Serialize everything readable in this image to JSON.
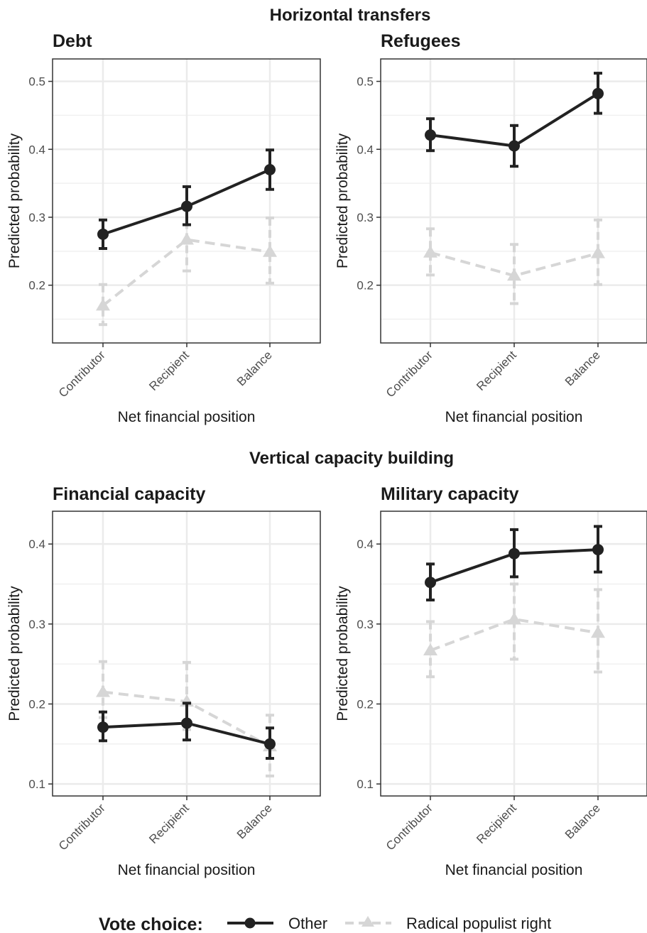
{
  "section_titles": {
    "top": "Horizontal transfers",
    "bottom": "Vertical capacity building"
  },
  "legend": {
    "title": "Vote choice:",
    "items": [
      {
        "label": "Other",
        "color": "#222222",
        "style": "solid",
        "marker": "circle"
      },
      {
        "label": "Radical populist right",
        "color": "#d6d6d6",
        "style": "dashed",
        "marker": "triangle"
      }
    ]
  },
  "chart_data": [
    {
      "type": "line",
      "title": "Debt",
      "xlabel": "Net financial position",
      "ylabel": "Predicted probability",
      "categories": [
        "Contributor",
        "Recipient",
        "Balance"
      ],
      "ylim": [
        0.115,
        0.533
      ],
      "yticks": [
        0.2,
        0.3,
        0.4,
        0.5
      ],
      "ytick_labels": [
        "0.2",
        "0.3",
        "0.4",
        "0.5"
      ],
      "grid": true,
      "series": [
        {
          "name": "Other",
          "values": [
            0.275,
            0.316,
            0.37
          ],
          "lower": [
            0.254,
            0.289,
            0.341
          ],
          "upper": [
            0.296,
            0.345,
            0.399
          ]
        },
        {
          "name": "Radical populist right",
          "values": [
            0.17,
            0.267,
            0.249
          ],
          "lower": [
            0.142,
            0.221,
            0.203
          ],
          "upper": [
            0.201,
            0.312,
            0.299
          ]
        }
      ]
    },
    {
      "type": "line",
      "title": "Refugees",
      "xlabel": "Net financial position",
      "ylabel": "Predicted probability",
      "categories": [
        "Contributor",
        "Recipient",
        "Balance"
      ],
      "ylim": [
        0.115,
        0.533
      ],
      "yticks": [
        0.2,
        0.3,
        0.4,
        0.5
      ],
      "ytick_labels": [
        "0.2",
        "0.3",
        "0.4",
        "0.5"
      ],
      "grid": true,
      "series": [
        {
          "name": "Other",
          "values": [
            0.421,
            0.405,
            0.482
          ],
          "lower": [
            0.398,
            0.375,
            0.453
          ],
          "upper": [
            0.445,
            0.435,
            0.512
          ]
        },
        {
          "name": "Radical populist right",
          "values": [
            0.248,
            0.214,
            0.247
          ],
          "lower": [
            0.215,
            0.173,
            0.201
          ],
          "upper": [
            0.283,
            0.26,
            0.296
          ]
        }
      ]
    },
    {
      "type": "line",
      "title": "Financial capacity",
      "xlabel": "Net financial position",
      "ylabel": "Predicted probability",
      "categories": [
        "Contributor",
        "Recipient",
        "Balance"
      ],
      "ylim": [
        0.085,
        0.441
      ],
      "yticks": [
        0.1,
        0.2,
        0.3,
        0.4
      ],
      "ytick_labels": [
        "0.1",
        "0.2",
        "0.3",
        "0.4"
      ],
      "grid": true,
      "series": [
        {
          "name": "Other",
          "values": [
            0.171,
            0.176,
            0.15
          ],
          "lower": [
            0.154,
            0.155,
            0.132
          ],
          "upper": [
            0.19,
            0.201,
            0.17
          ]
        },
        {
          "name": "Radical populist right",
          "values": [
            0.215,
            0.203,
            0.147
          ],
          "lower": [
            0.183,
            0.168,
            0.11
          ],
          "upper": [
            0.253,
            0.252,
            0.186
          ]
        }
      ]
    },
    {
      "type": "line",
      "title": "Military capacity",
      "xlabel": "Net financial position",
      "ylabel": "Predicted probability",
      "categories": [
        "Contributor",
        "Recipient",
        "Balance"
      ],
      "ylim": [
        0.085,
        0.441
      ],
      "yticks": [
        0.1,
        0.2,
        0.3,
        0.4
      ],
      "ytick_labels": [
        "0.1",
        "0.2",
        "0.3",
        "0.4"
      ],
      "grid": true,
      "series": [
        {
          "name": "Other",
          "values": [
            0.352,
            0.388,
            0.393
          ],
          "lower": [
            0.33,
            0.359,
            0.365
          ],
          "upper": [
            0.375,
            0.418,
            0.422
          ]
        },
        {
          "name": "Radical populist right",
          "values": [
            0.267,
            0.306,
            0.289
          ],
          "lower": [
            0.234,
            0.256,
            0.24
          ],
          "upper": [
            0.303,
            0.35,
            0.343
          ]
        }
      ]
    }
  ]
}
